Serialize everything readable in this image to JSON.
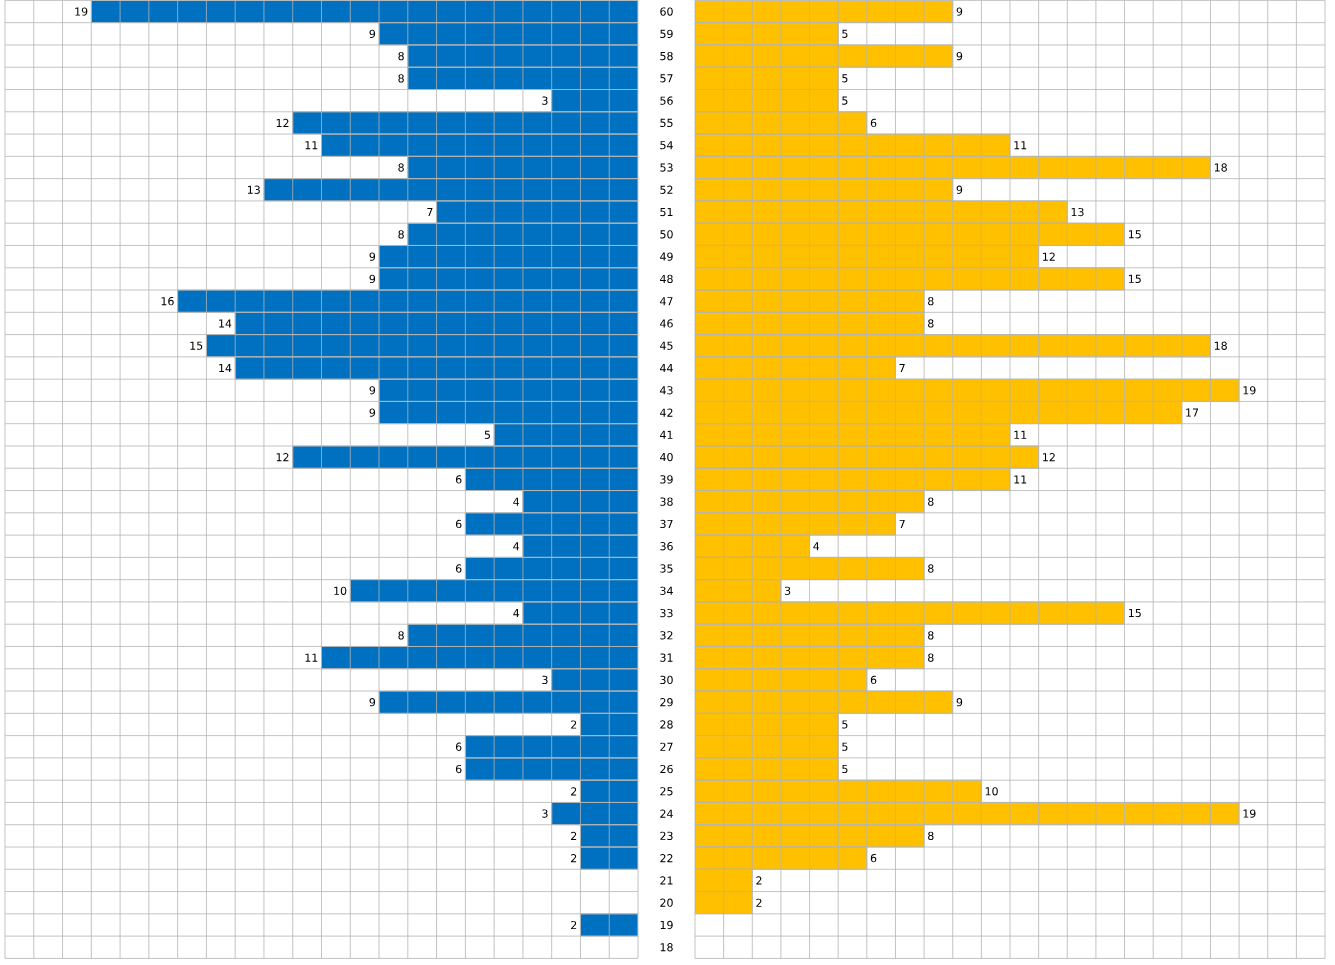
{
  "chart_data": [
    {
      "type": "bar",
      "orientation": "horizontal",
      "categories": [
        "60",
        "59",
        "58",
        "57",
        "56",
        "55",
        "54",
        "53",
        "52",
        "51",
        "50",
        "49",
        "48",
        "47",
        "46",
        "45",
        "44",
        "43",
        "42",
        "41",
        "40",
        "39",
        "38",
        "37",
        "36",
        "35",
        "34",
        "33",
        "32",
        "31",
        "30",
        "29",
        "28",
        "27",
        "26",
        "25",
        "24",
        "23",
        "22",
        "21",
        "20",
        "19",
        "18"
      ],
      "series": [
        {
          "color": "#0070c0",
          "values": [
            19,
            9,
            8,
            8,
            3,
            12,
            11,
            8,
            13,
            7,
            8,
            9,
            9,
            16,
            14,
            15,
            14,
            9,
            9,
            5,
            12,
            6,
            4,
            6,
            4,
            6,
            10,
            4,
            8,
            11,
            3,
            9,
            2,
            6,
            6,
            2,
            3,
            2,
            2,
            null,
            null,
            2,
            null
          ]
        }
      ],
      "xlim": [
        22,
        0
      ],
      "xticks": [
        {
          "value": 0,
          "label": null
        },
        {
          "value": 1,
          "label": null
        },
        {
          "value": 2,
          "label": null
        },
        {
          "value": 3,
          "label": null
        },
        {
          "value": 4,
          "label": null
        },
        {
          "value": 5,
          "label": null
        },
        {
          "value": 6,
          "label": null
        },
        {
          "value": 7,
          "label": null
        },
        {
          "value": 8,
          "label": null
        },
        {
          "value": 9,
          "label": null
        },
        {
          "value": 10,
          "label": null
        },
        {
          "value": 11,
          "label": null
        },
        {
          "value": 12,
          "label": null
        },
        {
          "value": 13,
          "label": null
        },
        {
          "value": 14,
          "label": null
        },
        {
          "value": 15,
          "label": null
        },
        {
          "value": 16,
          "label": null
        },
        {
          "value": 17,
          "label": null
        },
        {
          "value": 18,
          "label": null
        },
        {
          "value": 19,
          "label": null
        },
        {
          "value": 20,
          "label": null
        },
        {
          "value": 21,
          "label": null
        },
        {
          "value": 22,
          "label": null
        }
      ],
      "grid": true,
      "data_labels": true,
      "tick_labels": "y"
    },
    {
      "type": "bar",
      "orientation": "horizontal",
      "categories": [
        "60",
        "59",
        "58",
        "57",
        "56",
        "55",
        "54",
        "53",
        "52",
        "51",
        "50",
        "49",
        "48",
        "47",
        "46",
        "45",
        "44",
        "43",
        "42",
        "41",
        "40",
        "39",
        "38",
        "37",
        "36",
        "35",
        "34",
        "33",
        "32",
        "31",
        "30",
        "29",
        "28",
        "27",
        "26",
        "25",
        "24",
        "23",
        "22",
        "21",
        "20",
        "19",
        "18"
      ],
      "series": [
        {
          "color": "#ffc000",
          "values": [
            9,
            5,
            9,
            5,
            5,
            6,
            11,
            18,
            9,
            13,
            15,
            12,
            15,
            8,
            8,
            18,
            7,
            19,
            17,
            11,
            12,
            11,
            8,
            7,
            4,
            8,
            3,
            15,
            8,
            8,
            6,
            9,
            5,
            5,
            5,
            10,
            19,
            8,
            6,
            2,
            2,
            null,
            null
          ]
        }
      ],
      "xlim": [
        0,
        22
      ],
      "xticks": [
        {
          "value": 0,
          "label": null
        },
        {
          "value": 1,
          "label": null
        },
        {
          "value": 2,
          "label": null
        },
        {
          "value": 3,
          "label": null
        },
        {
          "value": 4,
          "label": null
        },
        {
          "value": 5,
          "label": null
        },
        {
          "value": 6,
          "label": null
        },
        {
          "value": 7,
          "label": null
        },
        {
          "value": 8,
          "label": null
        },
        {
          "value": 9,
          "label": null
        },
        {
          "value": 10,
          "label": null
        },
        {
          "value": 11,
          "label": null
        },
        {
          "value": 12,
          "label": null
        },
        {
          "value": 13,
          "label": null
        },
        {
          "value": 14,
          "label": null
        },
        {
          "value": 15,
          "label": null
        },
        {
          "value": 16,
          "label": null
        },
        {
          "value": 17,
          "label": null
        },
        {
          "value": 18,
          "label": null
        },
        {
          "value": 19,
          "label": null
        },
        {
          "value": 20,
          "label": null
        },
        {
          "value": 21,
          "label": null
        },
        {
          "value": 22,
          "label": null
        }
      ],
      "grid": true,
      "data_labels": true,
      "tick_labels": false
    }
  ]
}
